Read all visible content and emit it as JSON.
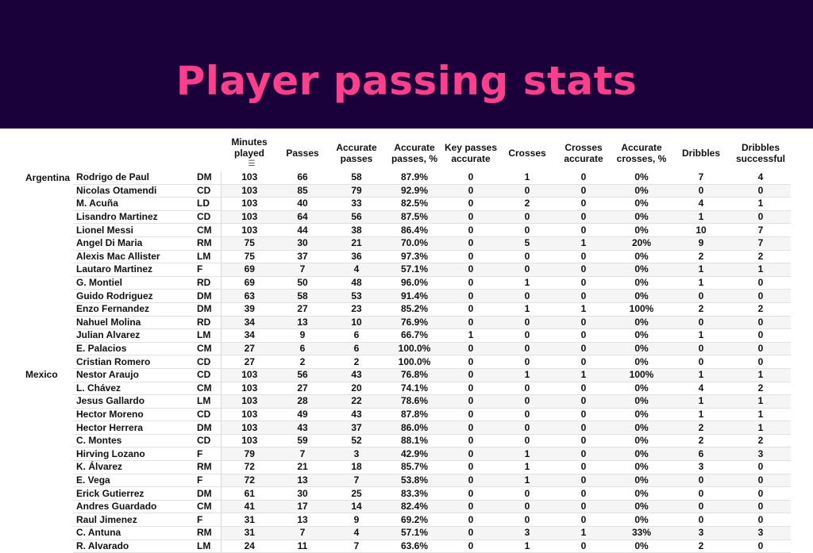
{
  "title": "Player passing stats",
  "columns": [
    {
      "label": "Minutes played",
      "sort_icon": "sort-icon"
    },
    {
      "label": "Passes"
    },
    {
      "label": "Accurate passes"
    },
    {
      "label": "Accurate passes, %"
    },
    {
      "label": "Key passes accurate"
    },
    {
      "label": "Crosses"
    },
    {
      "label": "Crosses accurate"
    },
    {
      "label": "Accurate crosses, %"
    },
    {
      "label": "Dribbles"
    },
    {
      "label": "Dribbles successful"
    }
  ],
  "rows": [
    {
      "team": "Argentina",
      "player": "Rodrigo de Paul",
      "pos": "DM",
      "values": [
        "103",
        "66",
        "58",
        "87.9%",
        "0",
        "1",
        "0",
        "0%",
        "7",
        "4"
      ]
    },
    {
      "team": "",
      "player": "Nicolas Otamendi",
      "pos": "CD",
      "values": [
        "103",
        "85",
        "79",
        "92.9%",
        "0",
        "0",
        "0",
        "0%",
        "0",
        "0"
      ]
    },
    {
      "team": "",
      "player": "M. Acuña",
      "pos": "LD",
      "values": [
        "103",
        "40",
        "33",
        "82.5%",
        "0",
        "2",
        "0",
        "0%",
        "4",
        "1"
      ]
    },
    {
      "team": "",
      "player": "Lisandro Martinez",
      "pos": "CD",
      "values": [
        "103",
        "64",
        "56",
        "87.5%",
        "0",
        "0",
        "0",
        "0%",
        "1",
        "0"
      ]
    },
    {
      "team": "",
      "player": "Lionel Messi",
      "pos": "CM",
      "values": [
        "103",
        "44",
        "38",
        "86.4%",
        "0",
        "0",
        "0",
        "0%",
        "10",
        "7"
      ]
    },
    {
      "team": "",
      "player": "Angel Di Maria",
      "pos": "RM",
      "values": [
        "75",
        "30",
        "21",
        "70.0%",
        "0",
        "5",
        "1",
        "20%",
        "9",
        "7"
      ]
    },
    {
      "team": "",
      "player": "Alexis Mac Allister",
      "pos": "LM",
      "values": [
        "75",
        "37",
        "36",
        "97.3%",
        "0",
        "0",
        "0",
        "0%",
        "2",
        "2"
      ]
    },
    {
      "team": "",
      "player": "Lautaro Martinez",
      "pos": "F",
      "values": [
        "69",
        "7",
        "4",
        "57.1%",
        "0",
        "0",
        "0",
        "0%",
        "1",
        "1"
      ]
    },
    {
      "team": "",
      "player": "G. Montiel",
      "pos": "RD",
      "values": [
        "69",
        "50",
        "48",
        "96.0%",
        "0",
        "1",
        "0",
        "0%",
        "1",
        "0"
      ]
    },
    {
      "team": "",
      "player": "Guido Rodriguez",
      "pos": "DM",
      "values": [
        "63",
        "58",
        "53",
        "91.4%",
        "0",
        "0",
        "0",
        "0%",
        "0",
        "0"
      ]
    },
    {
      "team": "",
      "player": "Enzo Fernandez",
      "pos": "DM",
      "values": [
        "39",
        "27",
        "23",
        "85.2%",
        "0",
        "1",
        "1",
        "100%",
        "2",
        "2"
      ]
    },
    {
      "team": "",
      "player": "Nahuel Molina",
      "pos": "RD",
      "values": [
        "34",
        "13",
        "10",
        "76.9%",
        "0",
        "0",
        "0",
        "0%",
        "0",
        "0"
      ]
    },
    {
      "team": "",
      "player": "Julian Alvarez",
      "pos": "LM",
      "values": [
        "34",
        "9",
        "6",
        "66.7%",
        "1",
        "0",
        "0",
        "0%",
        "1",
        "0"
      ]
    },
    {
      "team": "",
      "player": "E. Palacios",
      "pos": "CM",
      "values": [
        "27",
        "6",
        "6",
        "100.0%",
        "0",
        "0",
        "0",
        "0%",
        "0",
        "0"
      ]
    },
    {
      "team": "",
      "player": "Cristian Romero",
      "pos": "CD",
      "values": [
        "27",
        "2",
        "2",
        "100.0%",
        "0",
        "0",
        "0",
        "0%",
        "0",
        "0"
      ]
    },
    {
      "team": "Mexico",
      "player": "Nestor Araujo",
      "pos": "CD",
      "values": [
        "103",
        "56",
        "43",
        "76.8%",
        "0",
        "1",
        "1",
        "100%",
        "1",
        "1"
      ]
    },
    {
      "team": "",
      "player": "L. Chávez",
      "pos": "CM",
      "values": [
        "103",
        "27",
        "20",
        "74.1%",
        "0",
        "0",
        "0",
        "0%",
        "4",
        "2"
      ]
    },
    {
      "team": "",
      "player": "Jesus Gallardo",
      "pos": "LM",
      "values": [
        "103",
        "28",
        "22",
        "78.6%",
        "0",
        "0",
        "0",
        "0%",
        "1",
        "1"
      ]
    },
    {
      "team": "",
      "player": "Hector Moreno",
      "pos": "CD",
      "values": [
        "103",
        "49",
        "43",
        "87.8%",
        "0",
        "0",
        "0",
        "0%",
        "1",
        "1"
      ]
    },
    {
      "team": "",
      "player": "Hector Herrera",
      "pos": "DM",
      "values": [
        "103",
        "43",
        "37",
        "86.0%",
        "0",
        "0",
        "0",
        "0%",
        "2",
        "1"
      ]
    },
    {
      "team": "",
      "player": "C. Montes",
      "pos": "CD",
      "values": [
        "103",
        "59",
        "52",
        "88.1%",
        "0",
        "0",
        "0",
        "0%",
        "2",
        "2"
      ]
    },
    {
      "team": "",
      "player": "Hirving Lozano",
      "pos": "F",
      "values": [
        "79",
        "7",
        "3",
        "42.9%",
        "0",
        "1",
        "0",
        "0%",
        "6",
        "3"
      ]
    },
    {
      "team": "",
      "player": "K. Álvarez",
      "pos": "RM",
      "values": [
        "72",
        "21",
        "18",
        "85.7%",
        "0",
        "1",
        "0",
        "0%",
        "3",
        "0"
      ]
    },
    {
      "team": "",
      "player": "E. Vega",
      "pos": "F",
      "values": [
        "72",
        "13",
        "7",
        "53.8%",
        "0",
        "1",
        "0",
        "0%",
        "0",
        "0"
      ]
    },
    {
      "team": "",
      "player": "Erick Gutierrez",
      "pos": "DM",
      "values": [
        "61",
        "30",
        "25",
        "83.3%",
        "0",
        "0",
        "0",
        "0%",
        "0",
        "0"
      ]
    },
    {
      "team": "",
      "player": "Andres Guardado",
      "pos": "CM",
      "values": [
        "41",
        "17",
        "14",
        "82.4%",
        "0",
        "0",
        "0",
        "0%",
        "0",
        "0"
      ]
    },
    {
      "team": "",
      "player": "Raul Jimenez",
      "pos": "F",
      "values": [
        "31",
        "13",
        "9",
        "69.2%",
        "0",
        "0",
        "0",
        "0%",
        "0",
        "0"
      ]
    },
    {
      "team": "",
      "player": "C. Antuna",
      "pos": "RM",
      "values": [
        "31",
        "7",
        "4",
        "57.1%",
        "0",
        "3",
        "1",
        "33%",
        "3",
        "3"
      ]
    },
    {
      "team": "",
      "player": "R. Alvarado",
      "pos": "LM",
      "values": [
        "24",
        "11",
        "7",
        "63.6%",
        "0",
        "1",
        "0",
        "0%",
        "2",
        "0"
      ]
    }
  ]
}
